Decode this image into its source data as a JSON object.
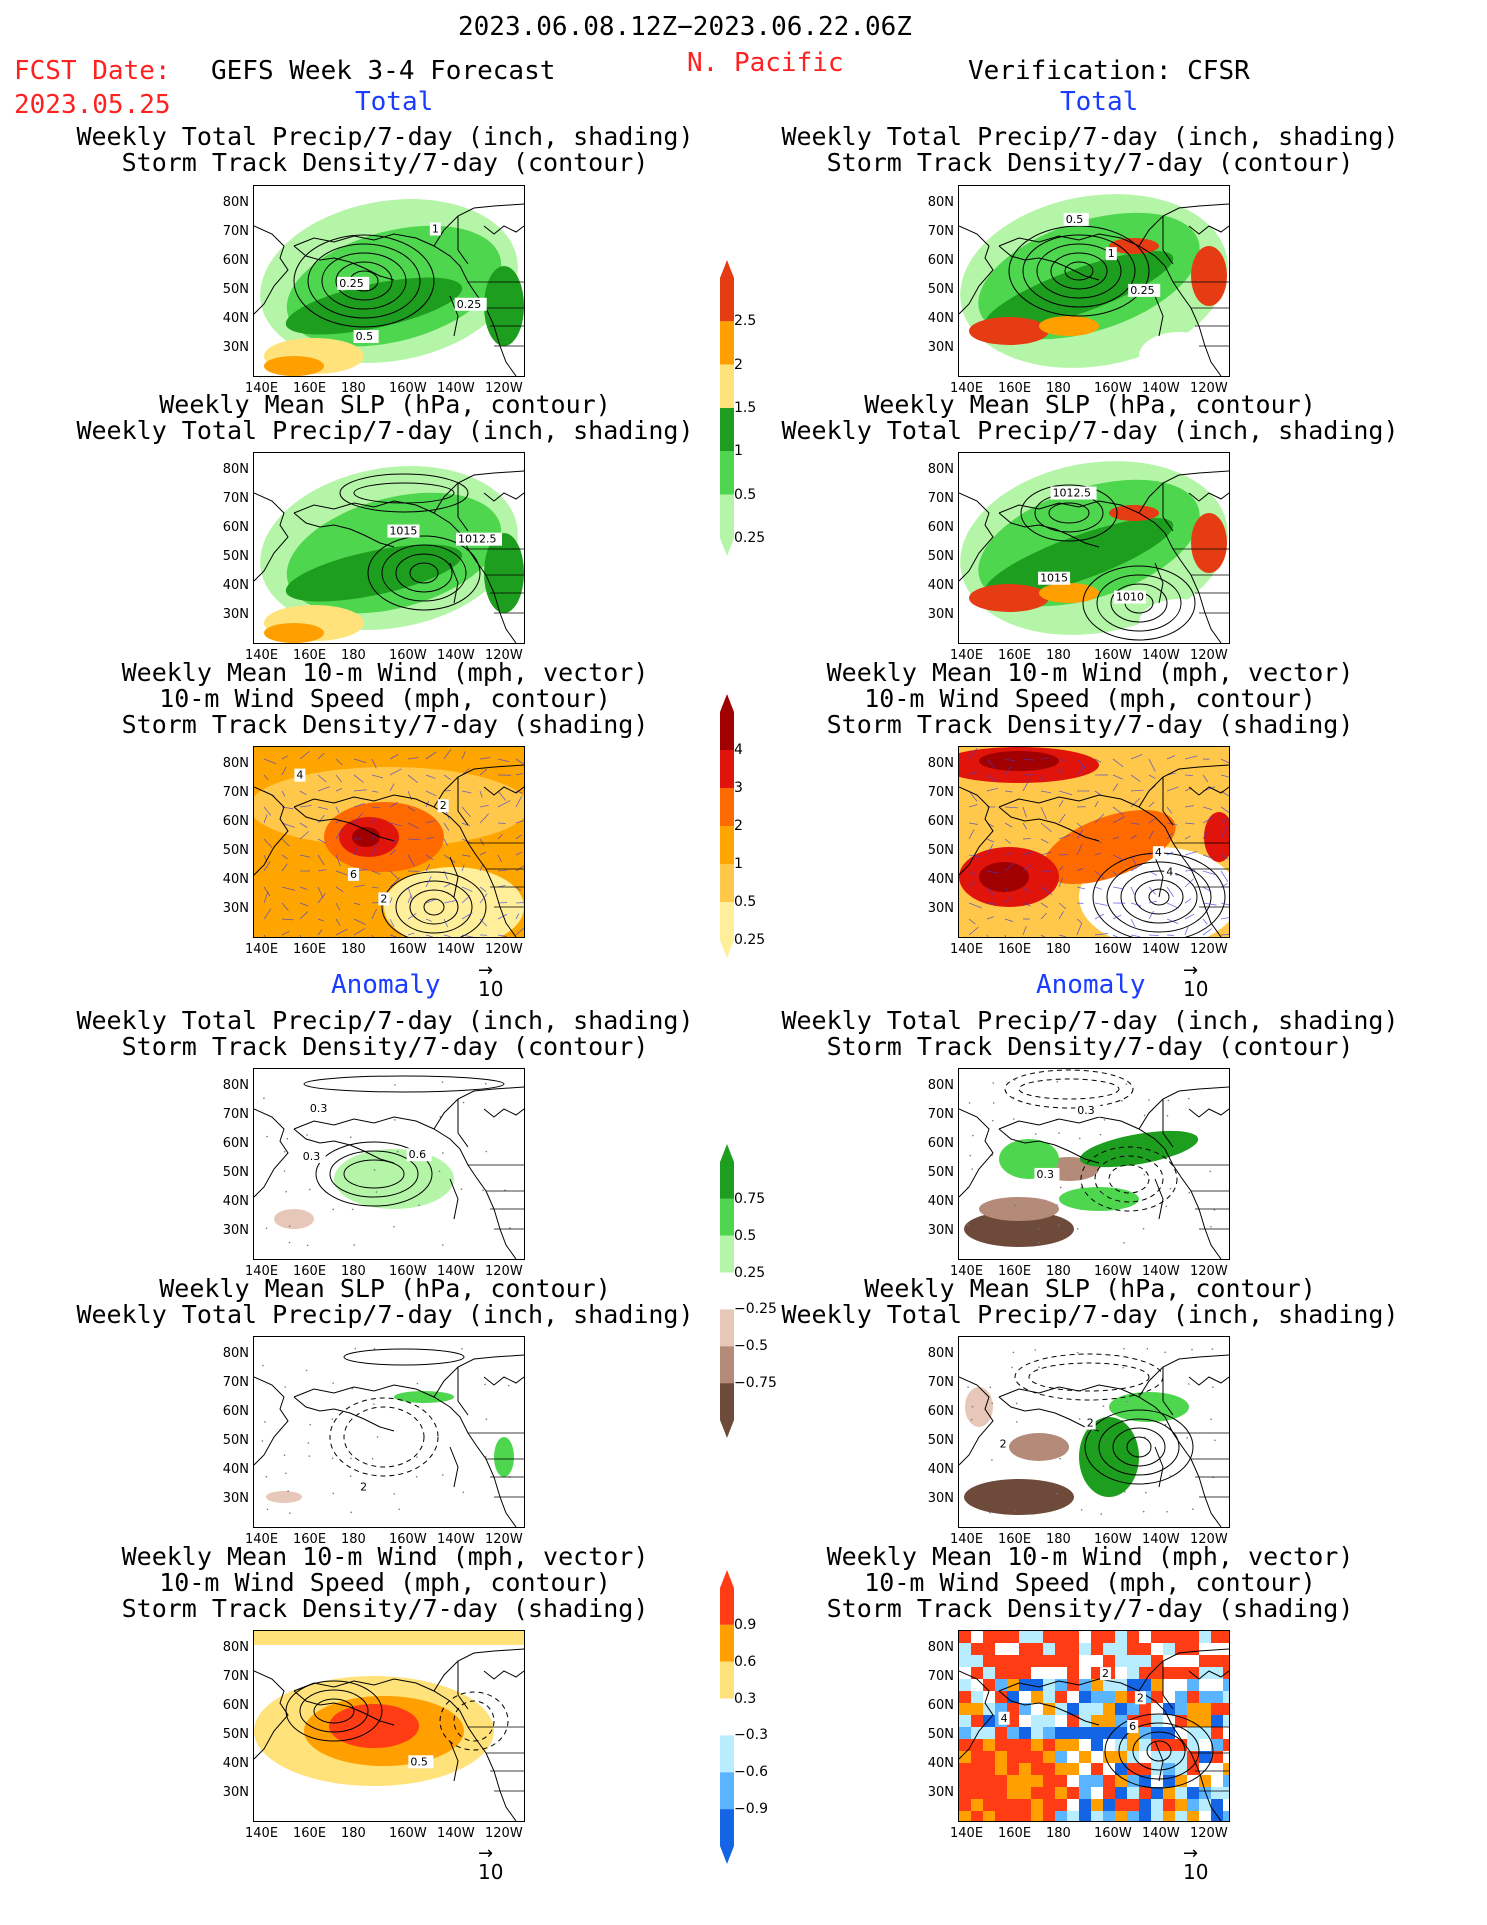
{
  "header": {
    "date_range": "2023.06.08.12Z−2023.06.22.06Z",
    "fcst_label": "FCST Date:",
    "fcst_date": "2023.05.25",
    "model_title": "GEFS Week 3-4 Forecast",
    "region": "N. Pacific",
    "verification": "Verification: CFSR"
  },
  "sections": {
    "total": "Total",
    "anomaly": "Anomaly"
  },
  "panel_titles": {
    "precip_storm": [
      "Weekly Total Precip/7-day (inch, shading)",
      "Storm Track Density/7-day (contour)"
    ],
    "slp_precip": [
      "Weekly Mean SLP (hPa, contour)",
      "Weekly Total Precip/7-day (inch, shading)"
    ],
    "wind_storm": [
      "Weekly Mean 10-m Wind (mph, vector)",
      "10-m Wind Speed (mph, contour)",
      "Storm Track Density/7-day (shading)"
    ]
  },
  "axes": {
    "lat_ticks": [
      "80N",
      "70N",
      "60N",
      "50N",
      "40N",
      "30N"
    ],
    "lon_ticks": [
      "140E",
      "160E",
      "180",
      "160W",
      "140W",
      "120W"
    ],
    "vector_ref": "10"
  },
  "contour_labels": {
    "fc_precip": [
      "0.25",
      "0.5",
      "1",
      "0.25"
    ],
    "ob_precip": [
      "0.5",
      "0.25",
      "1"
    ],
    "fc_slp": [
      "1015",
      "1012.5"
    ],
    "ob_slp": [
      "1010",
      "1012.5",
      "1015"
    ],
    "fc_wind": [
      "2",
      "2",
      "4",
      "6"
    ],
    "ob_wind": [
      "4",
      "4"
    ],
    "fc_aprecip": [
      "0.3",
      "0.3",
      "0.6"
    ],
    "ob_aprecip": [
      "0.3",
      "0.3"
    ],
    "fc_aslp": [
      "2"
    ],
    "ob_aslp": [
      "2",
      "2"
    ],
    "fc_awind": [
      "0.5"
    ],
    "ob_awind": [
      "2",
      "2",
      "6",
      "4"
    ]
  },
  "colorbars": {
    "precip": {
      "labels": [
        "2.5",
        "2",
        "1.5",
        "1",
        "0.5",
        "0.25"
      ],
      "colors": [
        "#e63c14",
        "#ff9f00",
        "#ffe27a",
        "#1e9e1e",
        "#4fd64f",
        "#b4f5a8"
      ]
    },
    "storm": {
      "labels": [
        "4",
        "3",
        "2",
        "1",
        "0.5",
        "0.25"
      ],
      "colors": [
        "#a00000",
        "#e0140a",
        "#ff6a00",
        "#ffa500",
        "#ffc84a",
        "#ffef9a"
      ]
    },
    "aprecip": {
      "labels": [
        "0.75",
        "0.5",
        "0.25",
        "−0.25",
        "−0.5",
        "−0.75"
      ],
      "colors": [
        "#1e9e1e",
        "#4fd64f",
        "#b4f5a8",
        "#ffffff",
        "#e7c8b8",
        "#b48a78",
        "#6e4a3a"
      ]
    },
    "astorm": {
      "labels": [
        "0.9",
        "0.6",
        "0.3",
        "−0.3",
        "−0.6",
        "−0.9"
      ],
      "colors": [
        "#ff3c14",
        "#ff9f00",
        "#ffe27a",
        "#ffffff",
        "#b8ecff",
        "#5ab4ff",
        "#1464e6"
      ]
    }
  },
  "colors": {
    "date_red": "#ff2020",
    "section_blue": "#1a3cff"
  },
  "chart_data": [
    {
      "type": "heatmap",
      "panel": "fc_precip",
      "title": "Weekly Total Precip/7-day (inch, shading) / Storm Track Density/7-day (contour)",
      "xlabel": "",
      "ylabel": "",
      "x_range": [
        "140E",
        "120W"
      ],
      "y_range": [
        "25N",
        "85N"
      ]
    },
    {
      "type": "heatmap",
      "panel": "ob_precip",
      "title": "Weekly Total Precip/7-day (inch, shading) / Storm Track Density/7-day (contour)",
      "xlabel": "",
      "ylabel": "",
      "x_range": [
        "140E",
        "120W"
      ],
      "y_range": [
        "25N",
        "85N"
      ]
    },
    {
      "type": "heatmap",
      "panel": "fc_slp",
      "title": "Weekly Mean SLP (hPa, contour) / Weekly Total Precip/7-day (inch, shading)",
      "xlabel": "",
      "ylabel": ""
    },
    {
      "type": "heatmap",
      "panel": "ob_slp",
      "title": "Weekly Mean SLP (hPa, contour) / Weekly Total Precip/7-day (inch, shading)",
      "xlabel": "",
      "ylabel": ""
    },
    {
      "type": "heatmap",
      "panel": "fc_wind",
      "title": "Weekly Mean 10-m Wind (mph, vector) / 10-m Wind Speed (mph, contour) / Storm Track Density/7-day (shading)",
      "xlabel": "",
      "ylabel": ""
    },
    {
      "type": "heatmap",
      "panel": "ob_wind",
      "title": "Weekly Mean 10-m Wind (mph, vector) / 10-m Wind Speed (mph, contour) / Storm Track Density/7-day (shading)",
      "xlabel": "",
      "ylabel": ""
    }
  ]
}
